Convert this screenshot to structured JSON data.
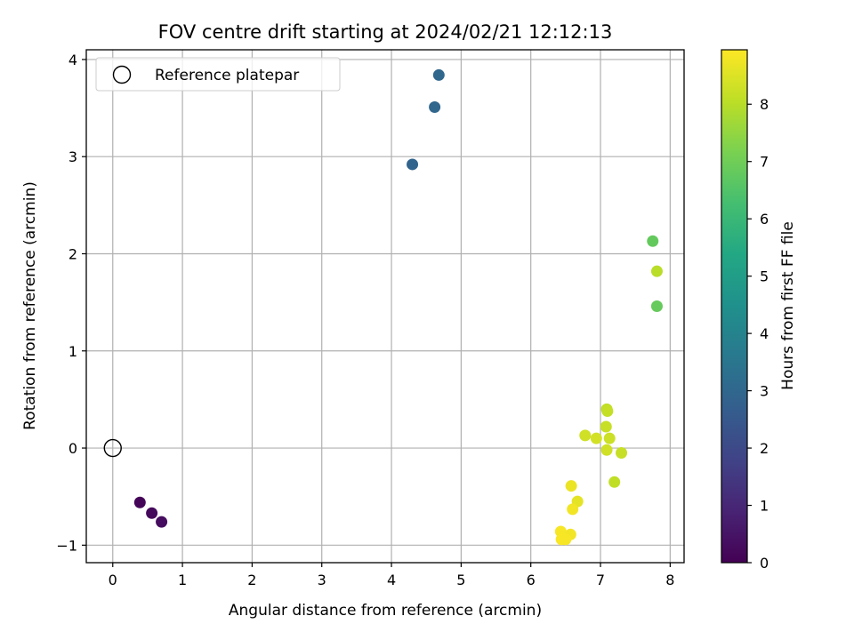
{
  "chart_data": {
    "type": "scatter",
    "title": "FOV centre drift starting at 2024/02/21 12:12:13",
    "xlabel": "Angular distance from reference (arcmin)",
    "ylabel": "Rotation from reference (arcmin)",
    "xlim": [
      -0.38,
      8.2
    ],
    "ylim": [
      -1.18,
      4.1
    ],
    "xticks": [
      0,
      1,
      2,
      3,
      4,
      5,
      6,
      7,
      8
    ],
    "yticks": [
      -1,
      0,
      1,
      2,
      3,
      4
    ],
    "xtick_labels": [
      "0",
      "1",
      "2",
      "3",
      "4",
      "5",
      "6",
      "7",
      "8"
    ],
    "ytick_labels": [
      "−1",
      "0",
      "1",
      "2",
      "3",
      "4"
    ],
    "grid": true,
    "legend": {
      "placement": "top-left",
      "label": "Reference platepar"
    },
    "reference_point": {
      "x": 0,
      "y": 0,
      "label": "Reference platepar"
    },
    "colorbar": {
      "label": "Hours from first FF file",
      "colormap": "viridis",
      "range": [
        0,
        8.95
      ],
      "ticks": [
        0,
        1,
        2,
        3,
        4,
        5,
        6,
        7,
        8
      ],
      "tick_labels": [
        "0",
        "1",
        "2",
        "3",
        "4",
        "5",
        "6",
        "7",
        "8"
      ]
    },
    "points": [
      {
        "x": 0.39,
        "y": -0.56,
        "hours": 0.1
      },
      {
        "x": 0.56,
        "y": -0.67,
        "hours": 0.2
      },
      {
        "x": 0.7,
        "y": -0.76,
        "hours": 0.3
      },
      {
        "x": 4.3,
        "y": 2.92,
        "hours": 2.9
      },
      {
        "x": 4.62,
        "y": 3.51,
        "hours": 2.95
      },
      {
        "x": 4.68,
        "y": 3.84,
        "hours": 3.0
      },
      {
        "x": 7.75,
        "y": 2.13,
        "hours": 6.8
      },
      {
        "x": 7.81,
        "y": 1.82,
        "hours": 8.0
      },
      {
        "x": 7.81,
        "y": 1.46,
        "hours": 6.85
      },
      {
        "x": 7.09,
        "y": 0.4,
        "hours": 8.1
      },
      {
        "x": 7.1,
        "y": 0.38,
        "hours": 8.15
      },
      {
        "x": 7.08,
        "y": 0.22,
        "hours": 8.2
      },
      {
        "x": 6.78,
        "y": 0.13,
        "hours": 8.3
      },
      {
        "x": 6.94,
        "y": 0.1,
        "hours": 8.35
      },
      {
        "x": 7.13,
        "y": 0.1,
        "hours": 8.25
      },
      {
        "x": 7.09,
        "y": -0.02,
        "hours": 8.3
      },
      {
        "x": 7.3,
        "y": -0.05,
        "hours": 8.2
      },
      {
        "x": 7.2,
        "y": -0.35,
        "hours": 8.1
      },
      {
        "x": 6.58,
        "y": -0.39,
        "hours": 8.7
      },
      {
        "x": 6.67,
        "y": -0.55,
        "hours": 8.6
      },
      {
        "x": 6.6,
        "y": -0.63,
        "hours": 8.8
      },
      {
        "x": 6.43,
        "y": -0.86,
        "hours": 8.85
      },
      {
        "x": 6.57,
        "y": -0.89,
        "hours": 8.8
      },
      {
        "x": 6.44,
        "y": -0.94,
        "hours": 8.9
      },
      {
        "x": 6.5,
        "y": -0.94,
        "hours": 8.85
      }
    ]
  }
}
